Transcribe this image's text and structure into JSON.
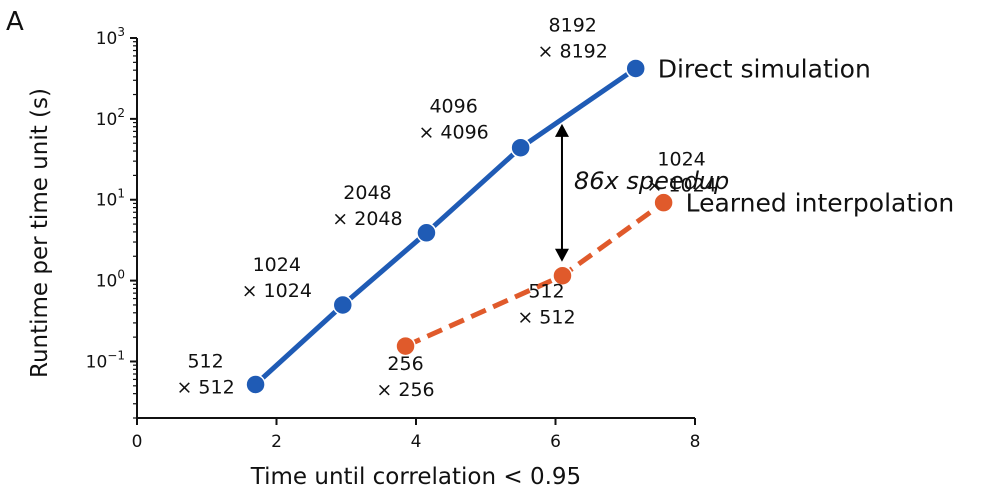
{
  "panel_label": "A",
  "colors": {
    "direct": "#1f5bb5",
    "learned": "#e05a2b",
    "axis": "#111111"
  },
  "chart_data": {
    "type": "line",
    "yscale": "log",
    "xlabel": "Time until correlation < 0.95",
    "ylabel": "Runtime per time unit (s)",
    "xlim": [
      0,
      8
    ],
    "ylim": [
      0.02,
      1000
    ],
    "x_ticks": [
      "0",
      "2",
      "4",
      "6",
      "8"
    ],
    "y_ticks": [
      {
        "value": 0.1,
        "base": "10",
        "exp": "−1"
      },
      {
        "value": 1,
        "base": "10",
        "exp": "0"
      },
      {
        "value": 10,
        "base": "10",
        "exp": "1"
      },
      {
        "value": 100,
        "base": "10",
        "exp": "2"
      },
      {
        "value": 1000,
        "base": "10",
        "exp": "3"
      }
    ],
    "series": [
      {
        "name": "Direct simulation",
        "style": "solid",
        "x": [
          1.7,
          2.95,
          4.15,
          5.5,
          7.15
        ],
        "y": [
          0.052,
          0.5,
          3.9,
          44,
          420
        ],
        "labels": [
          [
            "512",
            "× 512"
          ],
          [
            "1024",
            "× 1024"
          ],
          [
            "2048",
            "× 2048"
          ],
          [
            "4096",
            "× 4096"
          ],
          [
            "8192",
            "× 8192"
          ]
        ]
      },
      {
        "name": "Learned interpolation",
        "style": "dashed",
        "x": [
          3.85,
          6.1,
          7.55
        ],
        "y": [
          0.155,
          1.15,
          9.2
        ],
        "labels": [
          [
            "256",
            "× 256"
          ],
          [
            "512",
            "× 512"
          ],
          [
            "1024",
            "× 1024"
          ]
        ]
      }
    ],
    "annotation": {
      "text": "86x speedup",
      "x": 6.1,
      "y_from": 1.15,
      "y_to": 100
    }
  }
}
